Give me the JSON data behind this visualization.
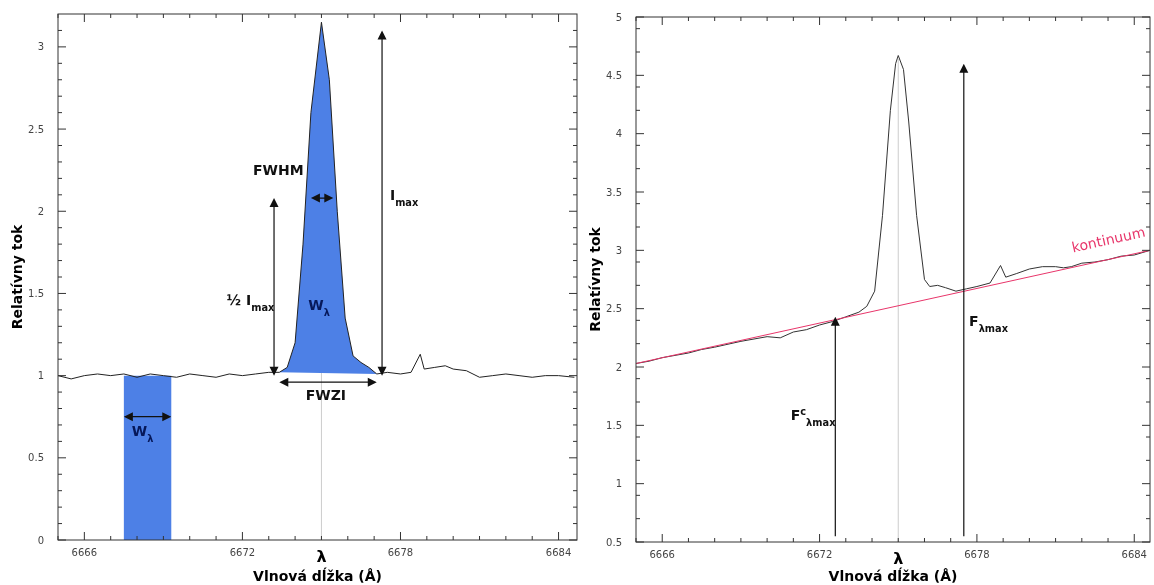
{
  "chart_data": [
    {
      "type": "line",
      "xlabel": "Vlnová dĺžka (Å)",
      "ylabel": "Relatívny tok",
      "xlim": [
        6665,
        6684.7
      ],
      "ylim": [
        0,
        3.2
      ],
      "xticks": [
        {
          "value": 6665,
          "label": null
        },
        6666,
        {
          "value": 6667,
          "label": null
        },
        {
          "value": 6668,
          "label": null
        },
        {
          "value": 6669,
          "label": null
        },
        {
          "value": 6670,
          "label": null
        },
        {
          "value": 6671,
          "label": null
        },
        6672,
        {
          "value": 6673,
          "label": null
        },
        {
          "value": 6674,
          "label": null
        },
        {
          "value": 6675,
          "label": null
        },
        {
          "value": 6676,
          "label": null
        },
        {
          "value": 6677,
          "label": null
        },
        6678,
        {
          "value": 6679,
          "label": null
        },
        {
          "value": 6680,
          "label": null
        },
        {
          "value": 6681,
          "label": null
        },
        {
          "value": 6682,
          "label": null
        },
        {
          "value": 6683,
          "label": null
        },
        6684
      ],
      "yticks": [
        0,
        {
          "value": 0.1,
          "label": null
        },
        {
          "value": 0.2,
          "label": null
        },
        {
          "value": 0.3,
          "label": null
        },
        {
          "value": 0.4,
          "label": null
        },
        0.5,
        {
          "value": 0.6,
          "label": null
        },
        {
          "value": 0.7,
          "label": null
        },
        {
          "value": 0.8,
          "label": null
        },
        {
          "value": 0.9,
          "label": null
        },
        1,
        {
          "value": 1.1,
          "label": null
        },
        {
          "value": 1.2,
          "label": null
        },
        {
          "value": 1.3,
          "label": null
        },
        {
          "value": 1.4,
          "label": null
        },
        1.5,
        {
          "value": 1.6,
          "label": null
        },
        {
          "value": 1.7,
          "label": null
        },
        {
          "value": 1.8,
          "label": null
        },
        {
          "value": 1.9,
          "label": null
        },
        2,
        {
          "value": 2.1,
          "label": null
        },
        {
          "value": 2.2,
          "label": null
        },
        {
          "value": 2.3,
          "label": null
        },
        {
          "value": 2.4,
          "label": null
        },
        2.5,
        {
          "value": 2.6,
          "label": null
        },
        {
          "value": 2.7,
          "label": null
        },
        {
          "value": 2.8,
          "label": null
        },
        {
          "value": 2.9,
          "label": null
        },
        3,
        {
          "value": 3.1,
          "label": null
        }
      ],
      "grid": false,
      "series": [
        {
          "type": "area",
          "color": "#4d80e6",
          "x": [
            6667.5,
            6667.5,
            6669.3,
            6669.3
          ],
          "values": [
            0,
            1,
            1,
            0
          ]
        },
        {
          "type": "area",
          "color": "#4d80e6",
          "x": [
            6673.4,
            6673.7,
            6674.0,
            6674.3,
            6674.6,
            6675.0,
            6675.3,
            6675.6,
            6675.9,
            6676.2,
            6676.5,
            6676.8,
            6677.1
          ],
          "values": [
            1.02,
            1.05,
            1.2,
            1.8,
            2.6,
            3.15,
            2.8,
            2.0,
            1.35,
            1.12,
            1.08,
            1.05,
            1.01
          ]
        },
        {
          "type": "line",
          "color": "#222222",
          "x": [
            6665,
            6665.5,
            6666,
            6666.5,
            6667,
            6667.5,
            6668,
            6668.5,
            6669,
            6669.5,
            6670,
            6670.5,
            6671,
            6671.5,
            6672,
            6672.5,
            6673,
            6673.4,
            6673.7,
            6674.0,
            6674.3,
            6674.6,
            6675.0,
            6675.3,
            6675.6,
            6675.9,
            6676.2,
            6676.5,
            6676.8,
            6677.1,
            6677.5,
            6678,
            6678.4,
            6678.75,
            6678.9,
            6679.3,
            6679.7,
            6680,
            6680.5,
            6681,
            6681.5,
            6682,
            6682.5,
            6683,
            6683.5,
            6684,
            6684.6
          ],
          "values": [
            1.0,
            0.98,
            1.0,
            1.01,
            1.0,
            1.01,
            0.99,
            1.01,
            1.0,
            0.99,
            1.01,
            1.0,
            0.99,
            1.01,
            1.0,
            1.01,
            1.02,
            1.02,
            1.05,
            1.2,
            1.8,
            2.6,
            3.15,
            2.8,
            2.0,
            1.35,
            1.12,
            1.08,
            1.05,
            1.01,
            1.02,
            1.01,
            1.02,
            1.13,
            1.04,
            1.05,
            1.06,
            1.04,
            1.03,
            0.99,
            1.0,
            1.01,
            1.0,
            0.99,
            1.0,
            1.0,
            0.99
          ]
        }
      ],
      "ref_lines": [
        {
          "axis": "x",
          "value": 6675,
          "label": "λ",
          "color": "#cccccc"
        }
      ],
      "annotations": [
        "FWHM",
        "I$_{max}$",
        "½ I$_{max}$",
        "FWZI",
        "W$_{λ}$",
        "W$_{λ}$"
      ]
    },
    {
      "type": "line",
      "xlabel": "Vlnová dĺžka (Å)",
      "ylabel": "Relatívny tok",
      "xlim": [
        6665,
        6684.6
      ],
      "ylim": [
        0.5,
        5
      ],
      "xticks": [
        {
          "value": 6665,
          "label": null
        },
        6666,
        {
          "value": 6667,
          "label": null
        },
        {
          "value": 6668,
          "label": null
        },
        {
          "value": 6669,
          "label": null
        },
        {
          "value": 6670,
          "label": null
        },
        {
          "value": 6671,
          "label": null
        },
        6672,
        {
          "value": 6673,
          "label": null
        },
        {
          "value": 6674,
          "label": null
        },
        {
          "value": 6675,
          "label": null
        },
        {
          "value": 6676,
          "label": null
        },
        {
          "value": 6677,
          "label": null
        },
        6678,
        {
          "value": 6679,
          "label": null
        },
        {
          "value": 6680,
          "label": null
        },
        {
          "value": 6681,
          "label": null
        },
        {
          "value": 6682,
          "label": null
        },
        {
          "value": 6683,
          "label": null
        },
        6684
      ],
      "yticks": [
        0.5,
        {
          "value": 0.7,
          "label": null
        },
        {
          "value": 0.9,
          "label": null
        },
        1,
        {
          "value": 1.2,
          "label": null
        },
        {
          "value": 1.4,
          "label": null
        },
        1.5,
        {
          "value": 1.7,
          "label": null
        },
        {
          "value": 1.9,
          "label": null
        },
        2,
        {
          "value": 2.2,
          "label": null
        },
        {
          "value": 2.4,
          "label": null
        },
        2.5,
        {
          "value": 2.7,
          "label": null
        },
        {
          "value": 2.9,
          "label": null
        },
        3,
        {
          "value": 3.2,
          "label": null
        },
        {
          "value": 3.4,
          "label": null
        },
        3.5,
        {
          "value": 3.7,
          "label": null
        },
        {
          "value": 3.9,
          "label": null
        },
        4,
        {
          "value": 4.2,
          "label": null
        },
        {
          "value": 4.4,
          "label": null
        },
        4.5,
        {
          "value": 4.7,
          "label": null
        },
        {
          "value": 4.9,
          "label": null
        },
        5
      ],
      "grid": false,
      "series": [
        {
          "type": "line",
          "color": "#333333",
          "x": [
            6665,
            6665.5,
            6666,
            6667,
            6667.5,
            6668,
            6669,
            6669.5,
            6670,
            6670.5,
            6671,
            6671.5,
            6672,
            6672.5,
            6673,
            6673.5,
            6673.8,
            6674.1,
            6674.4,
            6674.7,
            6674.9,
            6675.0,
            6675.2,
            6675.4,
            6675.7,
            6676.0,
            6676.2,
            6676.5,
            6676.8,
            6677.2,
            6677.6,
            6678,
            6678.5,
            6678.9,
            6679.1,
            6679.5,
            6680,
            6680.5,
            6681,
            6681.3,
            6681.6,
            6682,
            6682.5,
            6683,
            6683.5,
            6684,
            6684.6
          ],
          "values": [
            2.03,
            2.05,
            2.08,
            2.12,
            2.15,
            2.17,
            2.22,
            2.24,
            2.26,
            2.25,
            2.3,
            2.32,
            2.36,
            2.39,
            2.43,
            2.47,
            2.52,
            2.65,
            3.3,
            4.2,
            4.6,
            4.67,
            4.55,
            4.1,
            3.3,
            2.75,
            2.69,
            2.7,
            2.68,
            2.65,
            2.67,
            2.69,
            2.72,
            2.87,
            2.77,
            2.8,
            2.84,
            2.86,
            2.86,
            2.85,
            2.86,
            2.89,
            2.9,
            2.92,
            2.95,
            2.96,
            3.0
          ]
        },
        {
          "type": "line",
          "name": "kontinuum",
          "color": "#e8356a",
          "x": [
            6665,
            6684.6
          ],
          "values": [
            2.03,
            3.0
          ]
        }
      ],
      "ref_lines": [
        {
          "axis": "x",
          "value": 6675,
          "label": "λ",
          "color": "#cccccc"
        }
      ],
      "annotations": [
        "F$^{c}$$_{λmax}$",
        "F$_{λmax}$"
      ]
    }
  ]
}
